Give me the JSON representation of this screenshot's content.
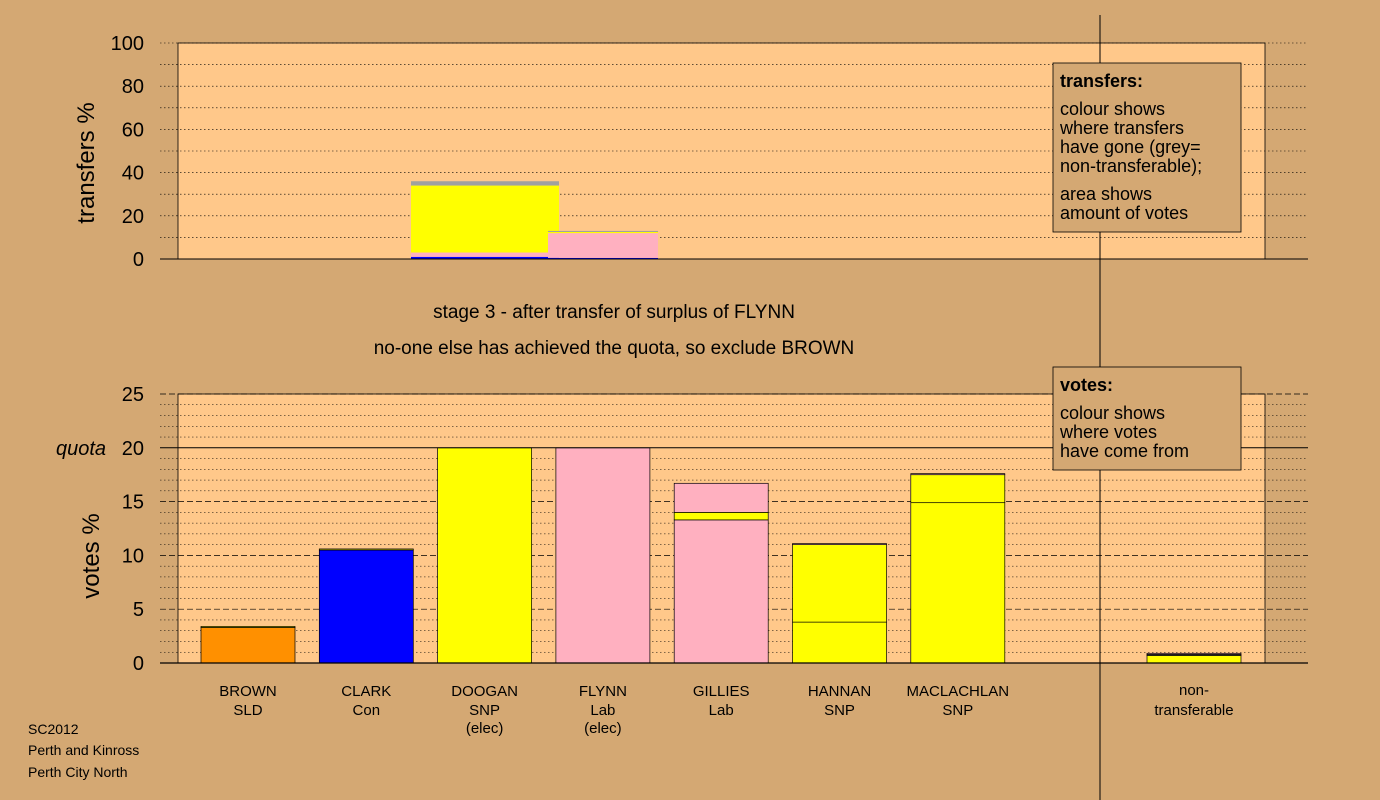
{
  "colors": {
    "background": "#d4a873",
    "plot_bg": "#ffc88a",
    "SLD": "#ff9000",
    "Con": "#0000ff",
    "SNP": "#ffff00",
    "Lab": "#ffb0c0",
    "non_transferable": "#a0a0a0"
  },
  "stage": {
    "line1": "stage 3 - after transfer of surplus of FLYNN",
    "line2": "no-one else has achieved the quota, so exclude BROWN"
  },
  "footer": {
    "line1": "SC2012",
    "line2": "Perth and Kinross",
    "line3": "Perth City North"
  },
  "legend_transfers": {
    "title": "transfers:",
    "lines": [
      "colour shows",
      "where transfers",
      "have gone (grey=",
      "non-transferable);",
      "area shows",
      "amount of votes"
    ]
  },
  "legend_votes": {
    "title": "votes:",
    "lines": [
      "colour shows",
      "where votes",
      "have come from"
    ]
  },
  "chart_data": [
    {
      "type": "bar",
      "name": "transfers",
      "ylabel": "transfers %",
      "ylim": [
        0,
        100
      ],
      "yticks": [
        0,
        20,
        40,
        60,
        80,
        100
      ],
      "bars": [
        {
          "candidate": "DOOGAN",
          "segments": [
            {
              "party": "Con",
              "value": 1
            },
            {
              "party": "Lab",
              "value": 2
            },
            {
              "party": "SNP",
              "value": 31
            },
            {
              "party": "non_transferable",
              "value": 2
            }
          ]
        },
        {
          "candidate": "FLYNN",
          "segments": [
            {
              "party": "Con",
              "value": 0.5
            },
            {
              "party": "Lab",
              "value": 11.5
            },
            {
              "party": "SNP",
              "value": 0.5
            },
            {
              "party": "non_transferable",
              "value": 0.5
            }
          ]
        }
      ]
    },
    {
      "type": "bar",
      "name": "votes",
      "ylabel": "votes %",
      "ylim": [
        0,
        25
      ],
      "yticks": [
        0,
        5,
        10,
        15,
        20,
        25
      ],
      "quota": 20,
      "quota_label": "quota",
      "grid": true,
      "candidates": [
        {
          "name": "BROWN",
          "party": "SLD",
          "note": "",
          "segments": [
            {
              "party": "SLD",
              "value": 3.3
            },
            {
              "party": "SNP",
              "value": 0.1
            }
          ]
        },
        {
          "name": "CLARK",
          "party": "Con",
          "note": "",
          "segments": [
            {
              "party": "Con",
              "value": 10.5
            },
            {
              "party": "SNP",
              "value": 0.1
            }
          ]
        },
        {
          "name": "DOOGAN",
          "party": "SNP",
          "note": "(elec)",
          "segments": [
            {
              "party": "SNP",
              "value": 20
            }
          ]
        },
        {
          "name": "FLYNN",
          "party": "Lab",
          "note": "(elec)",
          "segments": [
            {
              "party": "Lab",
              "value": 20
            }
          ]
        },
        {
          "name": "GILLIES",
          "party": "Lab",
          "note": "",
          "segments": [
            {
              "party": "Lab",
              "value": 13.3
            },
            {
              "party": "SNP",
              "value": 0.7
            },
            {
              "party": "Lab",
              "value": 2.7
            }
          ]
        },
        {
          "name": "HANNAN",
          "party": "SNP",
          "note": "",
          "segments": [
            {
              "party": "SNP",
              "value": 3.8
            },
            {
              "party": "SNP",
              "value": 7.2
            },
            {
              "party": "Lab",
              "value": 0.1
            }
          ]
        },
        {
          "name": "MACLACHLAN",
          "party": "SNP",
          "note": "",
          "segments": [
            {
              "party": "SNP",
              "value": 14.9
            },
            {
              "party": "SNP",
              "value": 2.6
            },
            {
              "party": "Lab",
              "value": 0.1
            }
          ]
        }
      ],
      "non_transferable": {
        "label_line1": "non-",
        "label_line2": "transferable",
        "segments": [
          {
            "party": "SNP",
            "value": 0.7
          },
          {
            "party": "non_transferable",
            "value": 0.1
          },
          {
            "party": "Lab",
            "value": 0.1
          }
        ]
      }
    }
  ]
}
